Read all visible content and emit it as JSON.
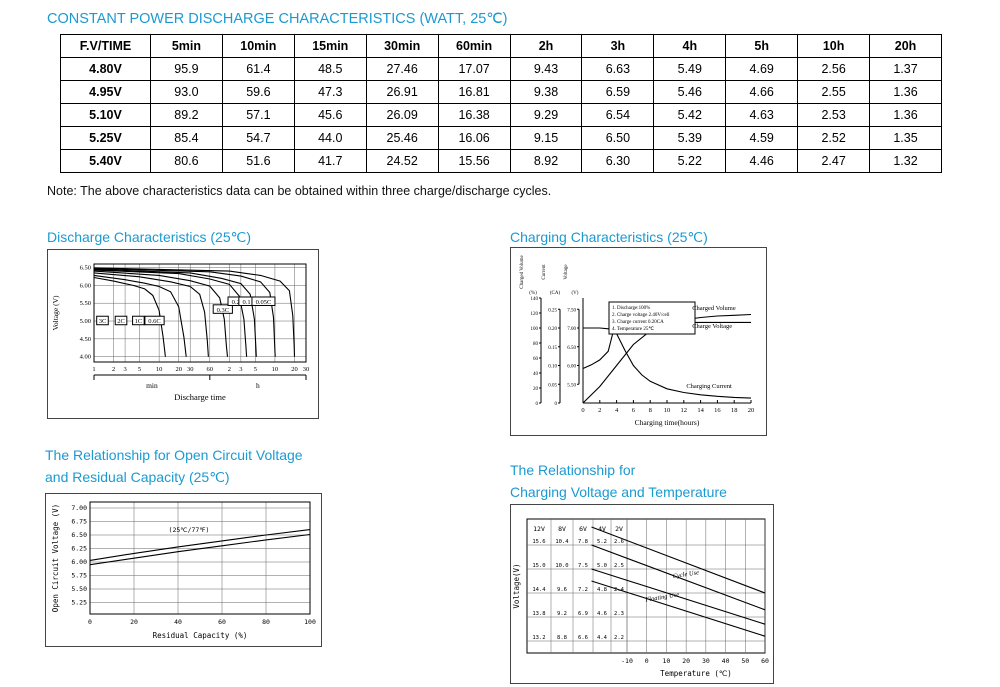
{
  "page": {
    "title": "CONSTANT POWER DISCHARGE CHARACTERISTICS (WATT, 25℃)",
    "note": "Note: The above characteristics data can be obtained within three charge/discharge cycles.",
    "accent_color": "#1b9ad2"
  },
  "table": {
    "headers": [
      "F.V/TIME",
      "5min",
      "10min",
      "15min",
      "30min",
      "60min",
      "2h",
      "3h",
      "4h",
      "5h",
      "10h",
      "20h"
    ],
    "rows": [
      [
        "4.80V",
        "95.9",
        "61.4",
        "48.5",
        "27.46",
        "17.07",
        "9.43",
        "6.63",
        "5.49",
        "4.69",
        "2.56",
        "1.37"
      ],
      [
        "4.95V",
        "93.0",
        "59.6",
        "47.3",
        "26.91",
        "16.81",
        "9.38",
        "6.59",
        "5.46",
        "4.66",
        "2.55",
        "1.36"
      ],
      [
        "5.10V",
        "89.2",
        "57.1",
        "45.6",
        "26.09",
        "16.38",
        "9.29",
        "6.54",
        "5.42",
        "4.63",
        "2.53",
        "1.36"
      ],
      [
        "5.25V",
        "85.4",
        "54.7",
        "44.0",
        "25.46",
        "16.06",
        "9.15",
        "6.50",
        "5.39",
        "4.59",
        "2.52",
        "1.35"
      ],
      [
        "5.40V",
        "80.6",
        "51.6",
        "41.7",
        "24.52",
        "15.56",
        "8.92",
        "6.30",
        "5.22",
        "4.46",
        "2.47",
        "1.32"
      ]
    ]
  },
  "sections": {
    "ocv_heading_line1": "The Relationship for Open Circuit Voltage",
    "ocv_heading_line2": "and Residual Capacity (25℃)",
    "ct_heading_line1": "The Relationship for",
    "ct_heading_line2": "Charging Voltage and Temperature"
  },
  "chart_data": [
    {
      "id": "discharge",
      "type": "line",
      "title": "Discharge Characteristics (25℃)",
      "ylabel": "Voltage (V)",
      "xlabel": "Discharge time",
      "x_unit_labels": [
        "min",
        "h"
      ],
      "y_ticks": [
        "6.50",
        "6.00",
        "5.50",
        "5.00",
        "4.50",
        "4.00"
      ],
      "x_ticks": [
        {
          "label": "1",
          "min": 1
        },
        {
          "label": "2",
          "min": 2
        },
        {
          "label": "3",
          "min": 3
        },
        {
          "label": "5",
          "min": 5
        },
        {
          "label": "10",
          "min": 10
        },
        {
          "label": "20",
          "min": 20
        },
        {
          "label": "30",
          "min": 30
        },
        {
          "label": "60",
          "min": 60
        },
        {
          "label": "2",
          "min": 120
        },
        {
          "label": "3",
          "min": 180
        },
        {
          "label": "5",
          "min": 300
        },
        {
          "label": "10",
          "min": 600
        },
        {
          "label": "20",
          "min": 1200
        },
        {
          "label": "30",
          "min": 1800
        }
      ],
      "series": [
        {
          "label": "3C",
          "points": [
            [
              1,
              6.22
            ],
            [
              2,
              6.12
            ],
            [
              4,
              6.0
            ],
            [
              6,
              5.9
            ],
            [
              8,
              5.72
            ],
            [
              10,
              5.3
            ],
            [
              11.5,
              4.55
            ],
            [
              12.5,
              4.0
            ]
          ]
        },
        {
          "label": "2C",
          "points": [
            [
              1,
              6.28
            ],
            [
              3,
              6.16
            ],
            [
              6,
              6.06
            ],
            [
              10,
              5.97
            ],
            [
              15,
              5.82
            ],
            [
              20,
              5.4
            ],
            [
              24,
              4.55
            ],
            [
              26,
              4.0
            ]
          ]
        },
        {
          "label": "1C",
          "points": [
            [
              1,
              6.35
            ],
            [
              5,
              6.24
            ],
            [
              15,
              6.1
            ],
            [
              30,
              5.97
            ],
            [
              42,
              5.75
            ],
            [
              50,
              5.25
            ],
            [
              55,
              4.45
            ],
            [
              57,
              4.0
            ]
          ]
        },
        {
          "label": "0.6C",
          "points": [
            [
              1,
              6.4
            ],
            [
              10,
              6.28
            ],
            [
              30,
              6.13
            ],
            [
              60,
              5.98
            ],
            [
              85,
              5.65
            ],
            [
              100,
              5.05
            ],
            [
              108,
              4.3
            ],
            [
              112,
              4.0
            ]
          ]
        },
        {
          "label": "0.3C",
          "points": [
            [
              1,
              6.43
            ],
            [
              20,
              6.33
            ],
            [
              60,
              6.18
            ],
            [
              120,
              6.03
            ],
            [
              170,
              5.7
            ],
            [
              200,
              5.05
            ],
            [
              215,
              4.3
            ],
            [
              220,
              4.0
            ]
          ]
        },
        {
          "label": "0.2C",
          "points": [
            [
              1,
              6.45
            ],
            [
              30,
              6.35
            ],
            [
              90,
              6.2
            ],
            [
              180,
              6.05
            ],
            [
              250,
              5.75
            ],
            [
              290,
              5.05
            ],
            [
              305,
              4.3
            ],
            [
              310,
              4.0
            ]
          ]
        },
        {
          "label": "0.1C",
          "points": [
            [
              1,
              6.47
            ],
            [
              60,
              6.38
            ],
            [
              180,
              6.26
            ],
            [
              360,
              6.1
            ],
            [
              500,
              5.8
            ],
            [
              570,
              5.1
            ],
            [
              595,
              4.3
            ],
            [
              605,
              4.0
            ]
          ]
        },
        {
          "label": "0.05C",
          "points": [
            [
              1,
              6.49
            ],
            [
              120,
              6.4
            ],
            [
              360,
              6.28
            ],
            [
              720,
              6.12
            ],
            [
              1000,
              5.85
            ],
            [
              1130,
              5.15
            ],
            [
              1180,
              4.35
            ],
            [
              1200,
              4.0
            ]
          ]
        }
      ],
      "rate_labels": [
        {
          "label": "3C",
          "min": 1.35,
          "v": 4.98
        },
        {
          "label": "2C",
          "min": 2.6,
          "v": 4.98
        },
        {
          "label": "1C",
          "min": 4.8,
          "v": 4.98
        },
        {
          "label": "0.6C",
          "min": 8.5,
          "v": 4.98
        },
        {
          "label": "0.3C",
          "min": 95,
          "v": 5.3
        },
        {
          "label": "0.2",
          "min": 150,
          "v": 5.52
        },
        {
          "label": "0.1",
          "min": 220,
          "v": 5.52
        },
        {
          "label": "0.05C",
          "min": 400,
          "v": 5.52
        }
      ]
    },
    {
      "id": "charging",
      "type": "line",
      "title": "Charging Characteristics (25℃)",
      "xlabel": "Charging time(hours)",
      "axis_titles": [
        "Charged Volume",
        "Current",
        "Voltage"
      ],
      "axis_units": [
        "(%)",
        "(CA)",
        "(V)"
      ],
      "pct_ticks": [
        0,
        20,
        40,
        60,
        80,
        100,
        120,
        140
      ],
      "ca_ticks": [
        "0",
        "0.05",
        "0.10",
        "0.15",
        "0.20",
        "0.25"
      ],
      "v_ticks": [
        "5.50",
        "6.00",
        "6.50",
        "7.00",
        "7.50"
      ],
      "x_ticks": [
        0,
        2,
        4,
        6,
        8,
        10,
        12,
        14,
        16,
        18,
        20
      ],
      "notes": [
        "1. Discharge:100%",
        "2. Charge voltage 2.40V/cell",
        "3. Charge current 0.20CA",
        "4. Temperature 25℃"
      ],
      "series": [
        {
          "label": "Charged Volume",
          "unit": "pct",
          "points": [
            [
              0,
              0
            ],
            [
              2,
              22
            ],
            [
              4,
              50
            ],
            [
              6,
              78
            ],
            [
              8,
              96
            ],
            [
              10,
              106
            ],
            [
              12,
              111
            ],
            [
              14,
              114
            ],
            [
              16,
              116
            ],
            [
              18,
              117
            ],
            [
              20,
              118
            ]
          ]
        },
        {
          "label": "Charge Voltage",
          "unit": "v",
          "points": [
            [
              0,
              5.92
            ],
            [
              1,
              6.02
            ],
            [
              2,
              6.15
            ],
            [
              3,
              6.38
            ],
            [
              3.6,
              6.9
            ],
            [
              4,
              7.48
            ],
            [
              4.5,
              7.32
            ],
            [
              5,
              7.24
            ],
            [
              6,
              7.18
            ],
            [
              8,
              7.16
            ],
            [
              12,
              7.15
            ],
            [
              16,
              7.15
            ],
            [
              20,
              7.15
            ]
          ]
        },
        {
          "label": "Charging Current",
          "unit": "ca",
          "points": [
            [
              0,
              0.2
            ],
            [
              2,
              0.2
            ],
            [
              3,
              0.198
            ],
            [
              4,
              0.185
            ],
            [
              5,
              0.14
            ],
            [
              6,
              0.1
            ],
            [
              7,
              0.075
            ],
            [
              8,
              0.058
            ],
            [
              10,
              0.038
            ],
            [
              12,
              0.028
            ],
            [
              14,
              0.022
            ],
            [
              16,
              0.018
            ],
            [
              18,
              0.015
            ],
            [
              20,
              0.013
            ]
          ]
        }
      ],
      "curve_labels": [
        {
          "label": "Charged Volume",
          "t": 13,
          "pct": 124
        },
        {
          "label": "Charge Voltage",
          "t": 13,
          "pct": 100
        },
        {
          "label": "Charging Current",
          "t": 12.3,
          "pct": 20
        }
      ]
    },
    {
      "id": "ocv",
      "type": "line",
      "title": "The Relationship for Open Circuit Voltage and Residual Capacity (25℃)",
      "ylabel": "Open Circuit Voltage (V)",
      "xlabel": "Residual Capacity (%)",
      "annotation": "(25℃/77℉)",
      "y_ticks": [
        "7.00",
        "6.75",
        "6.50",
        "6.25",
        "6.00",
        "5.75",
        "5.50",
        "5.25"
      ],
      "x_ticks": [
        0,
        20,
        40,
        60,
        80,
        100
      ],
      "series": [
        {
          "label": "upper",
          "points": [
            [
              0,
              6.03
            ],
            [
              20,
              6.16
            ],
            [
              40,
              6.28
            ],
            [
              60,
              6.39
            ],
            [
              80,
              6.5
            ],
            [
              100,
              6.6
            ]
          ]
        },
        {
          "label": "lower",
          "points": [
            [
              0,
              5.95
            ],
            [
              20,
              6.07
            ],
            [
              40,
              6.19
            ],
            [
              60,
              6.3
            ],
            [
              80,
              6.41
            ],
            [
              100,
              6.51
            ]
          ]
        }
      ]
    },
    {
      "id": "charge_temp",
      "type": "line",
      "title": "The Relationship for Charging Voltage and Temperature",
      "ylabel": "Voltage(V)",
      "xlabel": "Temperature (℃)",
      "col_headers": [
        "12V",
        "8V",
        "6V",
        "4V",
        "2V"
      ],
      "tick_rows": [
        [
          "15.6",
          "10.4",
          "7.8",
          "5.2",
          "2.6"
        ],
        [
          "15.0",
          "10.0",
          "7.5",
          "5.0",
          "2.5"
        ],
        [
          "14.4",
          "9.6",
          "7.2",
          "4.8",
          "2.4"
        ],
        [
          "13.8",
          "9.2",
          "6.9",
          "4.6",
          "2.3"
        ],
        [
          "13.2",
          "8.8",
          "6.6",
          "4.4",
          "2.2"
        ]
      ],
      "x_ticks": [
        -10,
        0,
        10,
        20,
        30,
        40,
        50,
        60
      ],
      "bands": [
        {
          "label": "Cycle Use",
          "top": [
            [
              -28,
              2.675
            ],
            [
              60,
              2.4
            ]
          ],
          "bottom": [
            [
              -28,
              2.6
            ],
            [
              60,
              2.33
            ]
          ]
        },
        {
          "label": "Floating Use",
          "top": [
            [
              -28,
              2.5
            ],
            [
              60,
              2.27
            ]
          ],
          "bottom": [
            [
              -28,
              2.45
            ],
            [
              60,
              2.22
            ]
          ]
        }
      ],
      "band_labels": [
        {
          "label": "Cycle Use",
          "t": 20,
          "v": 2.47,
          "rot": -9
        },
        {
          "label": "Floating Use",
          "t": 8,
          "v": 2.375,
          "rot": -9
        }
      ]
    }
  ]
}
